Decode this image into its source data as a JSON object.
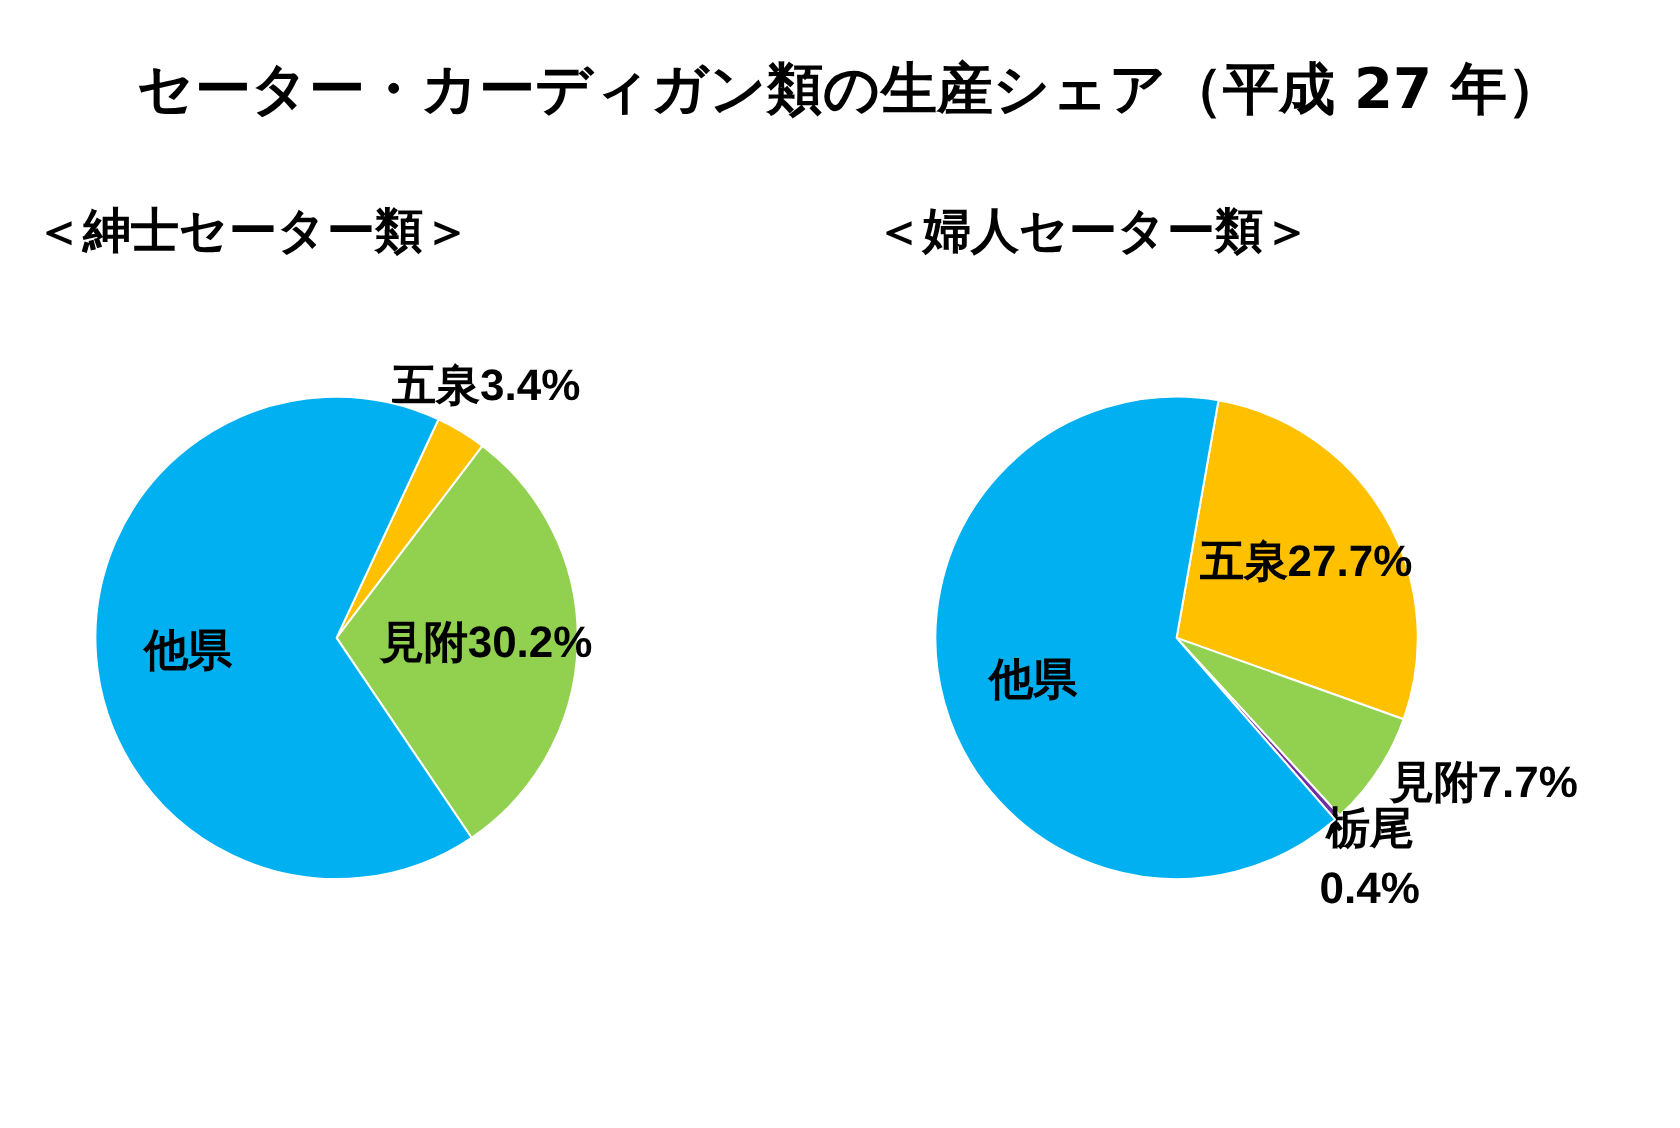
{
  "chart_data": [
    {
      "type": "pie",
      "title": "セーター・カーディガン類の生産シェア（平成 27 年）",
      "subtitle": "＜紳士セーター類＞",
      "categories": [
        "五泉",
        "見附",
        "他県"
      ],
      "values": [
        3.4,
        30.2,
        66.4
      ],
      "colors": [
        "#ffc000",
        "#92d050",
        "#00b0f0"
      ],
      "value_labels": [
        "3.4%",
        "30.2%",
        null
      ]
    },
    {
      "type": "pie",
      "subtitle": "＜婦人セーター類＞",
      "categories": [
        "五泉",
        "見附",
        "栃尾",
        "他県"
      ],
      "values": [
        27.7,
        7.7,
        0.4,
        64.2
      ],
      "colors": [
        "#ffc000",
        "#92d050",
        "#7030a0",
        "#00b0f0"
      ],
      "value_labels": [
        "27.7%",
        "7.7%",
        "0.4%",
        null
      ]
    }
  ]
}
